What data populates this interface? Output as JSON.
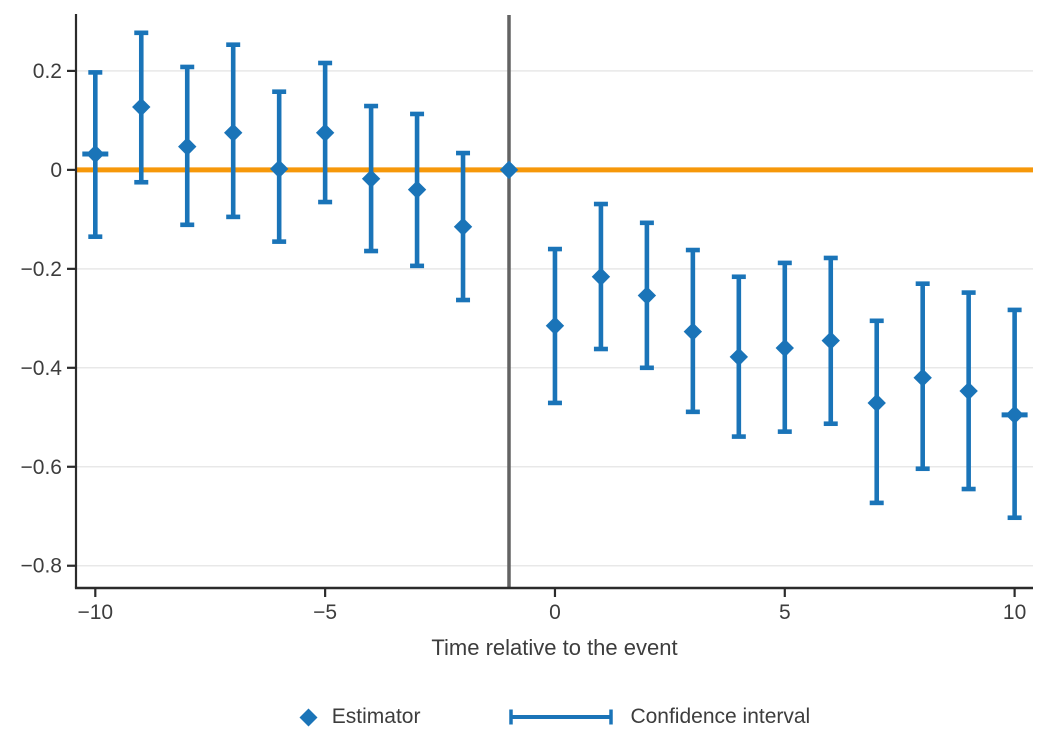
{
  "figure": {
    "xlabel": "Time relative to the event",
    "legend": {
      "estimator": "Estimator",
      "confidence_interval": "Confidence interval"
    }
  },
  "chart_data": {
    "type": "scatter",
    "subtype": "event-study-errorbar",
    "title": "",
    "xlabel": "Time relative to the event",
    "ylabel": "",
    "x": [
      -10,
      -9,
      -8,
      -7,
      -6,
      -5,
      -4,
      -3,
      -2,
      -1,
      0,
      1,
      2,
      3,
      4,
      5,
      6,
      7,
      8,
      9,
      10
    ],
    "series": [
      {
        "name": "Estimator",
        "marker": "diamond",
        "values": [
          0.032,
          0.127,
          0.047,
          0.075,
          0.002,
          0.075,
          -0.018,
          -0.04,
          -0.115,
          0.0,
          -0.315,
          -0.216,
          -0.254,
          -0.327,
          -0.378,
          -0.36,
          -0.345,
          -0.471,
          -0.42,
          -0.447,
          -0.495
        ]
      },
      {
        "name": "Confidence interval",
        "style": "errorbar-with-caps",
        "lower": [
          -0.135,
          -0.025,
          -0.111,
          -0.095,
          -0.145,
          -0.065,
          -0.164,
          -0.194,
          -0.263,
          null,
          -0.471,
          -0.362,
          -0.4,
          -0.489,
          -0.539,
          -0.529,
          -0.513,
          -0.673,
          -0.604,
          -0.645,
          -0.703
        ],
        "upper": [
          0.197,
          0.277,
          0.208,
          0.253,
          0.158,
          0.216,
          0.129,
          0.113,
          0.034,
          null,
          -0.16,
          -0.069,
          -0.107,
          -0.162,
          -0.216,
          -0.188,
          -0.178,
          -0.305,
          -0.23,
          -0.248,
          -0.283
        ]
      }
    ],
    "reference_period_x": -1,
    "zero_line_y": 0,
    "endpoint_dash_x": [
      -10,
      10
    ],
    "xticks": [
      -10,
      -5,
      0,
      5,
      10
    ],
    "xtick_labels": [
      "−10",
      "−5",
      "0",
      "5",
      "10"
    ],
    "yticks": [
      0.2,
      0,
      -0.2,
      -0.4,
      -0.6,
      -0.8
    ],
    "ytick_labels": [
      "0.2",
      "0",
      "−0.2",
      "−0.4",
      "−0.6",
      "−0.8"
    ],
    "xlim": [
      -10.42,
      10.4
    ],
    "ylim": [
      -0.845,
      0.313
    ],
    "grid": "horizontal-only",
    "legend_position": "bottom",
    "colors": {
      "estimator": "#1a74b8",
      "zero_line": "#f6980a",
      "reference_line": "#636363",
      "grid": "#e8e8e8",
      "axis": "#2b2b2b",
      "text": "#3d3d3d"
    }
  }
}
